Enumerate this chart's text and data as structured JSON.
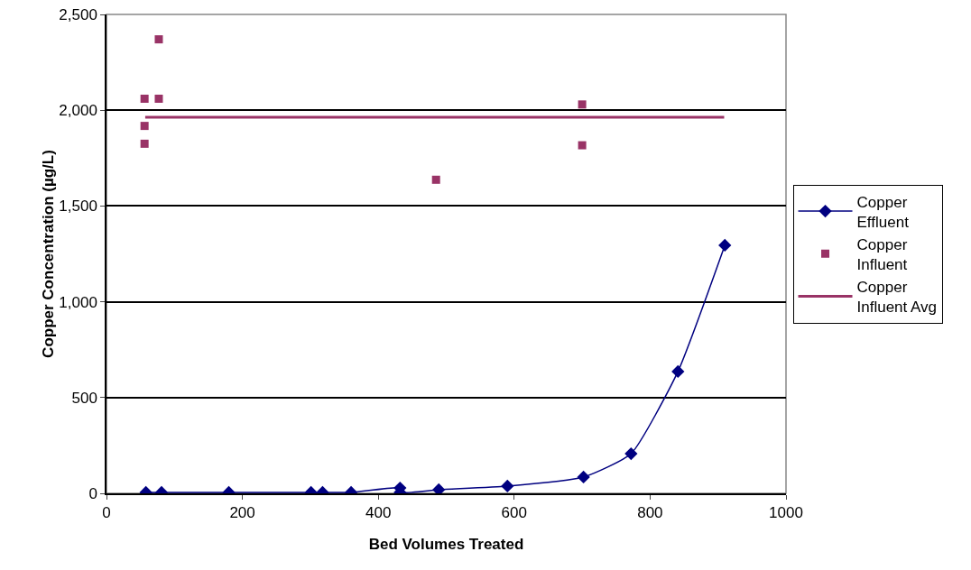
{
  "chart_data": {
    "type": "scatter",
    "xlabel": "Bed Volumes Treated",
    "ylabel": "Copper Concentration (µg/L)",
    "xlim": [
      0,
      1000
    ],
    "xticks": [
      0,
      200,
      400,
      600,
      800,
      1000
    ],
    "ylim": [
      0,
      2500
    ],
    "yticks": [
      {
        "value": 0,
        "label": "0"
      },
      {
        "value": 500,
        "label": "500"
      },
      {
        "value": 1000,
        "label": "1,000"
      },
      {
        "value": 1500,
        "label": "1,500"
      },
      {
        "value": 2000,
        "label": "2,000"
      },
      {
        "value": 2500,
        "label": "2,500"
      }
    ],
    "grid": "y",
    "legend": "right",
    "series": [
      {
        "name": "Copper Effluent",
        "type": "line",
        "marker": "diamond",
        "line_style": "solid",
        "color": "#000080",
        "x": [
          58,
          81,
          180,
          301,
          318,
          360,
          432,
          432,
          489,
          590,
          702,
          772,
          841,
          910
        ],
        "values": [
          5,
          5,
          5,
          5,
          5,
          5,
          28,
          5,
          19,
          38,
          85,
          207,
          636,
          1295
        ]
      },
      {
        "name": "Copper Influent",
        "marker": "square",
        "color": "#993366",
        "x": [
          56,
          56,
          56,
          77,
          77,
          485,
          700,
          700
        ],
        "values": [
          2060,
          1918,
          1825,
          2370,
          2060,
          1637,
          2030,
          1817
        ]
      },
      {
        "name": "Copper Influent Avg",
        "type": "line",
        "marker": "none",
        "line_style": "solid",
        "color": "#993366",
        "x": [
          57,
          909
        ],
        "values": [
          1963,
          1963
        ]
      }
    ]
  }
}
